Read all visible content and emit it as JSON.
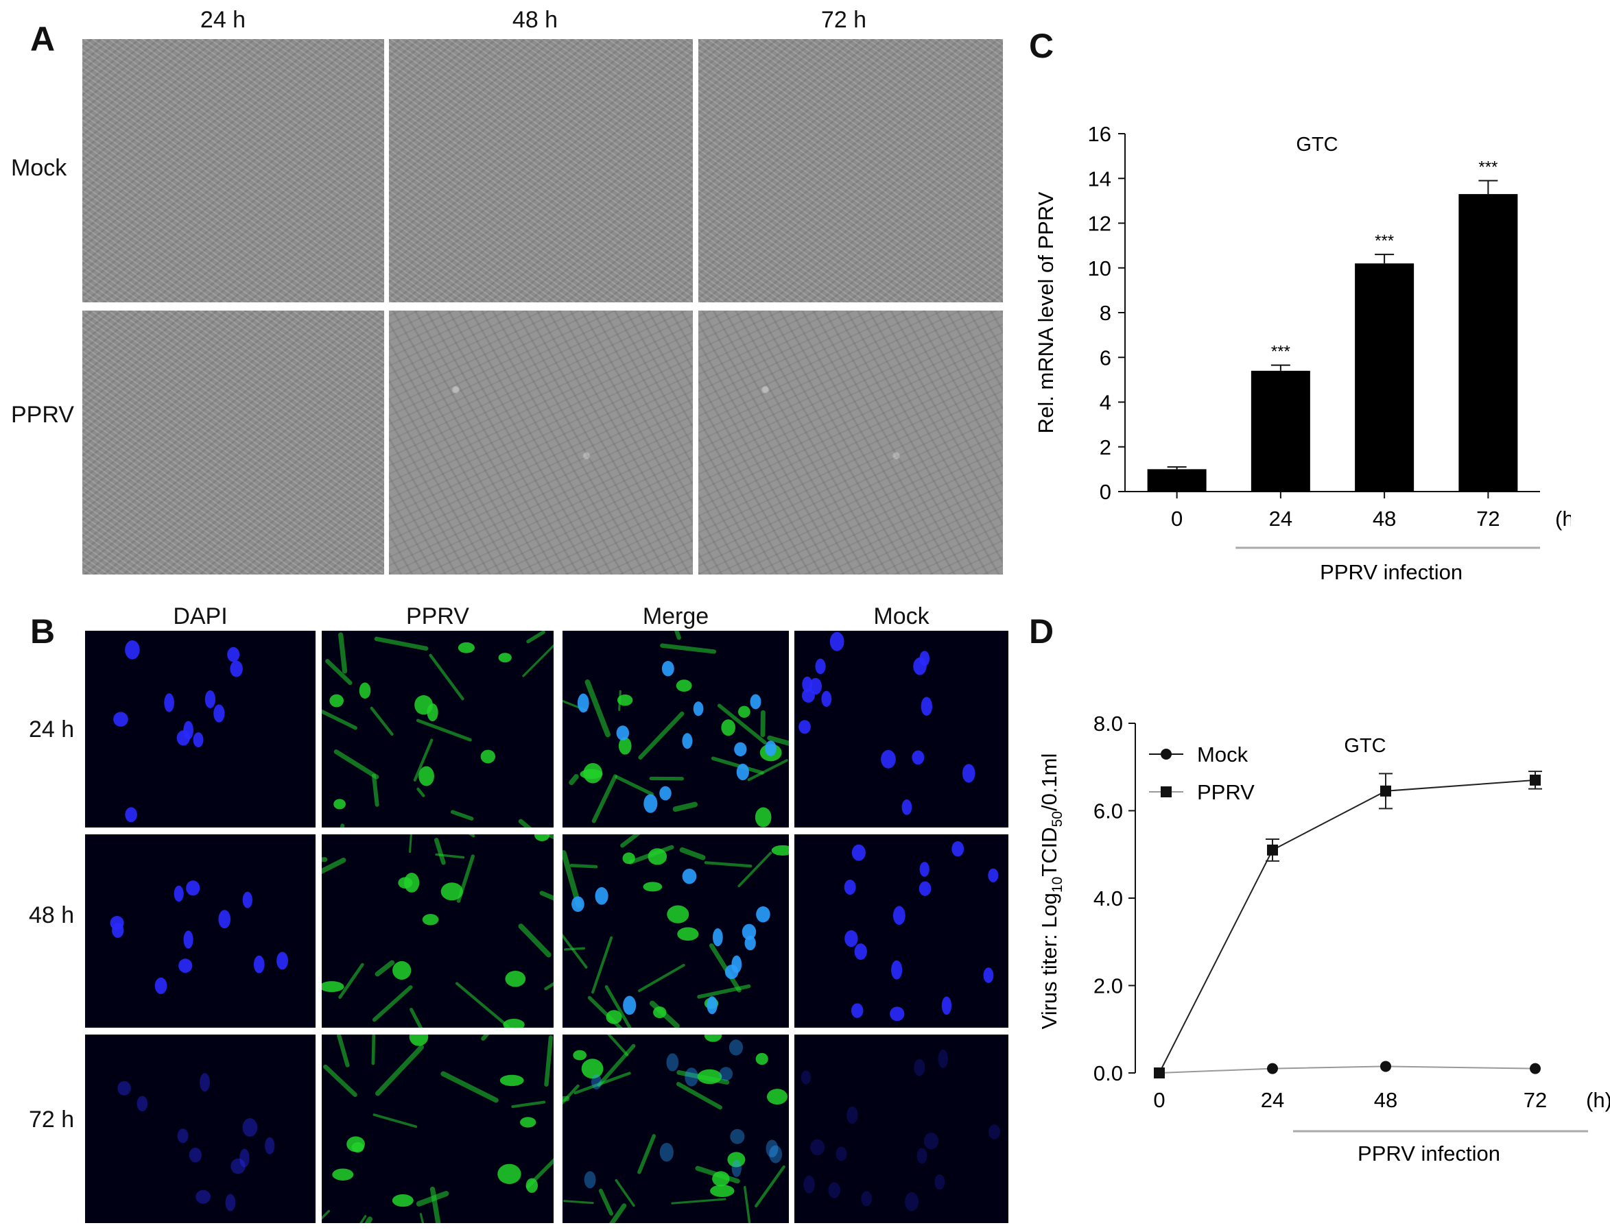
{
  "panel_a": {
    "letter": "A",
    "columns": [
      "24 h",
      "48 h",
      "72 h"
    ],
    "rows": [
      "Mock",
      "PPRV"
    ]
  },
  "panel_b": {
    "letter": "B",
    "columns": [
      "DAPI",
      "PPRV",
      "Merge",
      "Mock"
    ],
    "rows": [
      "24 h",
      "48 h",
      "72 h"
    ],
    "colors": {
      "dapi": "#2a2aff",
      "pprv": "#22d22a"
    }
  },
  "chart_data": [
    {
      "panel": "C",
      "type": "bar",
      "title": "GTC",
      "ylabel": "Rel. mRNA level of PPRV",
      "xlabel": "PPRV infection",
      "x_unit": "(h)",
      "categories": [
        "0",
        "24",
        "48",
        "72"
      ],
      "values": [
        1.0,
        5.4,
        10.2,
        13.3
      ],
      "errors": [
        0.1,
        0.25,
        0.4,
        0.6
      ],
      "significance": [
        "",
        "***",
        "***",
        "***"
      ],
      "ylim": [
        0,
        16
      ],
      "yticks": [
        "0",
        "2",
        "4",
        "6",
        "8",
        "10",
        "12",
        "14",
        "16"
      ],
      "bar_color": "#000000"
    },
    {
      "panel": "D",
      "type": "line",
      "title": "GTC",
      "ylabel_prefix": "Virus titer: Log",
      "ylabel_sub1": "10",
      "ylabel_mid": "TCID",
      "ylabel_sub2": "50",
      "ylabel_suffix": "/0.1ml",
      "xlabel": "PPRV infection",
      "x_unit": "(h)",
      "x": [
        "0",
        "24",
        "48",
        "72"
      ],
      "ylim": [
        0,
        8
      ],
      "yticks": [
        "0.0",
        "2.0",
        "4.0",
        "6.0",
        "8.0"
      ],
      "series": [
        {
          "name": "Mock",
          "marker": "circle",
          "values": [
            0.0,
            0.1,
            0.15,
            0.1
          ],
          "errors": [
            0.0,
            0.0,
            0.0,
            0.0
          ]
        },
        {
          "name": "PPRV",
          "marker": "square",
          "values": [
            0.0,
            5.1,
            6.45,
            6.7
          ],
          "errors": [
            0.0,
            0.25,
            0.4,
            0.2
          ]
        }
      ],
      "legend_position": "top-left"
    }
  ]
}
